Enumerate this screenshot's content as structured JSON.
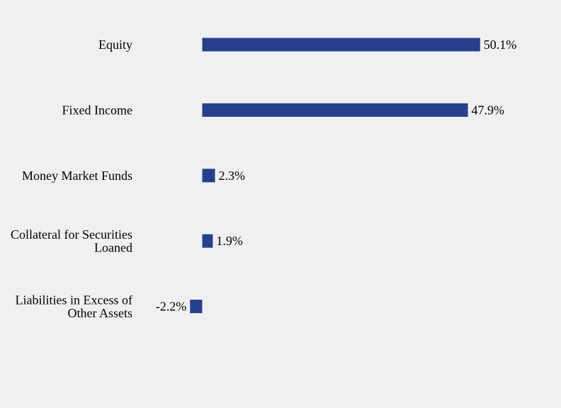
{
  "chart_data": {
    "type": "bar",
    "orientation": "horizontal",
    "categories": [
      [
        "Equity"
      ],
      [
        "Fixed Income"
      ],
      [
        "Money Market Funds"
      ],
      [
        "Collateral for Securities",
        "Loaned"
      ],
      [
        "Liabilities in Excess of",
        "Other Assets"
      ]
    ],
    "values": [
      50.1,
      47.9,
      2.3,
      1.9,
      -2.2
    ],
    "value_labels": [
      "50.1%",
      "47.9%",
      "2.3%",
      "1.9%",
      "-2.2%"
    ],
    "bar_color": "#27408b",
    "grid": false,
    "legend": "none"
  }
}
